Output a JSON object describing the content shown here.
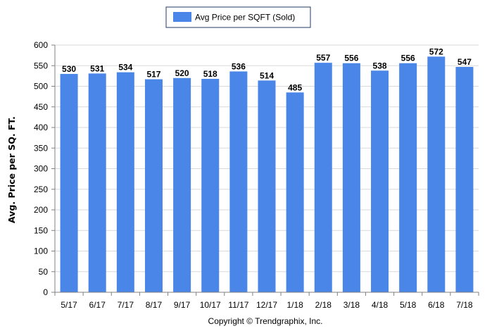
{
  "colors": {
    "bar": "#4a86e8",
    "grid": "#d9d9d9",
    "axis": "#808080",
    "legend_border": "#1f3864"
  },
  "legend": {
    "label": "Avg Price per SQFT (Sold)"
  },
  "footer": {
    "text": "Copyright © Trendgraphix, Inc."
  },
  "chart_data": {
    "type": "bar",
    "title": "",
    "xlabel": "",
    "ylabel": "Avg. Price per SQ. FT.",
    "ylim": [
      0,
      600
    ],
    "yticks": [
      0,
      50,
      100,
      150,
      200,
      250,
      300,
      350,
      400,
      450,
      500,
      550,
      600
    ],
    "grid": true,
    "legend_position": "top-center",
    "categories": [
      "5/17",
      "6/17",
      "7/17",
      "8/17",
      "9/17",
      "10/17",
      "11/17",
      "12/17",
      "1/18",
      "2/18",
      "3/18",
      "4/18",
      "5/18",
      "6/18",
      "7/18"
    ],
    "series": [
      {
        "name": "Avg Price per SQFT (Sold)",
        "values": [
          530,
          531,
          534,
          517,
          520,
          518,
          536,
          514,
          485,
          557,
          556,
          538,
          556,
          572,
          547
        ]
      }
    ]
  }
}
